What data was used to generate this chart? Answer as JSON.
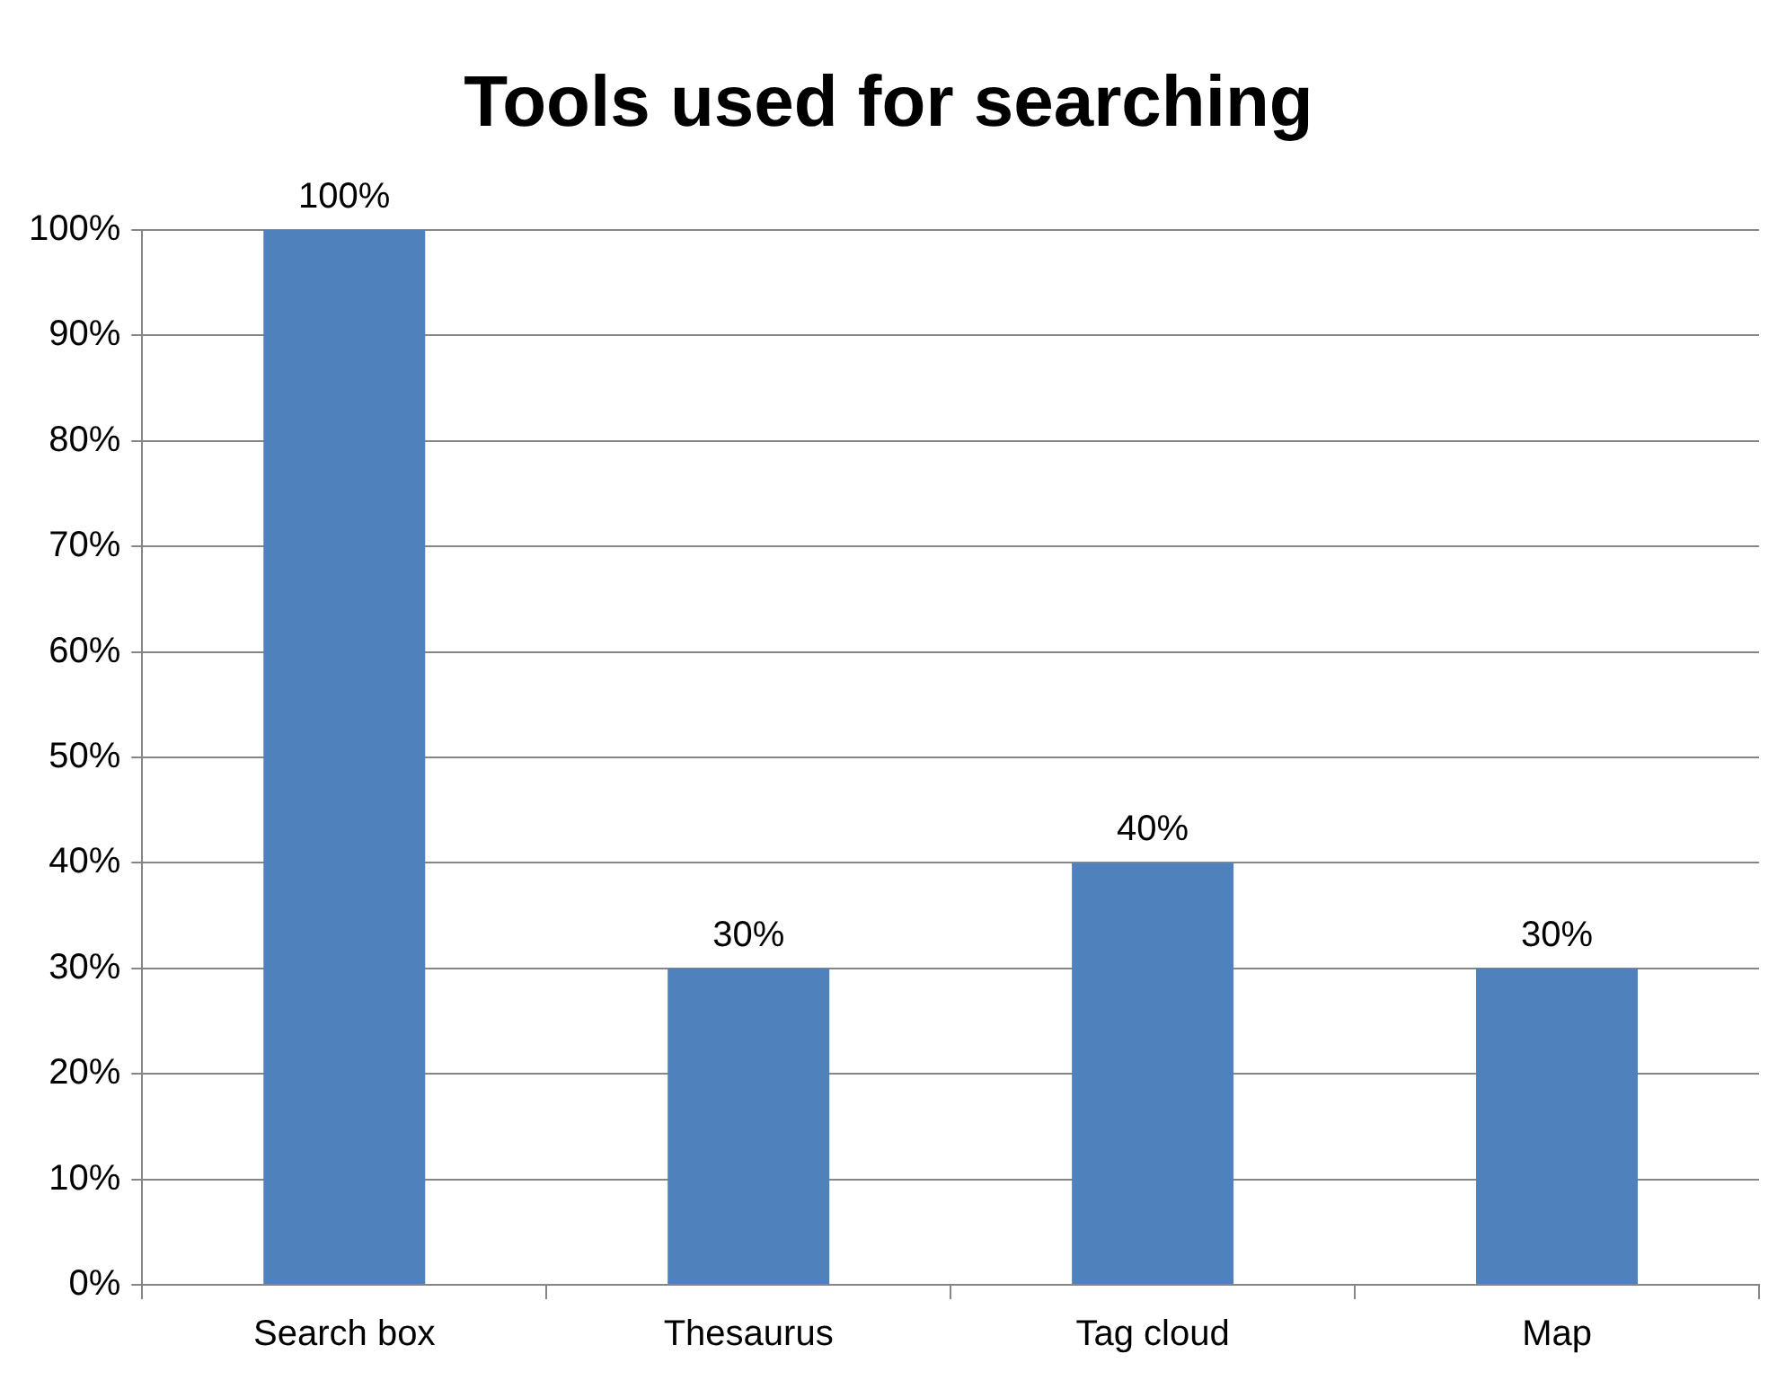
{
  "chart_data": {
    "type": "bar",
    "title": "Tools used for searching",
    "categories": [
      "Search box",
      "Thesaurus",
      "Tag cloud",
      "Map"
    ],
    "values": [
      100,
      30,
      40,
      30
    ],
    "value_labels": [
      "100%",
      "30%",
      "40%",
      "30%"
    ],
    "color": "#4f81bd",
    "ylim": [
      0,
      100
    ],
    "yticks": [
      {
        "value": 0,
        "label": "0%"
      },
      {
        "value": 10,
        "label": "10%"
      },
      {
        "value": 20,
        "label": "20%"
      },
      {
        "value": 30,
        "label": "30%"
      },
      {
        "value": 40,
        "label": "40%"
      },
      {
        "value": 50,
        "label": "50%"
      },
      {
        "value": 60,
        "label": "60%"
      },
      {
        "value": 70,
        "label": "70%"
      },
      {
        "value": 80,
        "label": "80%"
      },
      {
        "value": 90,
        "label": "90%"
      },
      {
        "value": 100,
        "label": "100%"
      }
    ],
    "grid": "y"
  }
}
